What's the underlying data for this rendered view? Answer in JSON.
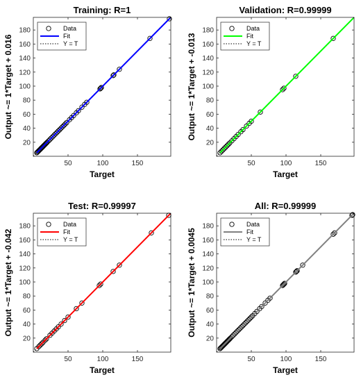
{
  "chart_data": [
    {
      "type": "scatter",
      "title": "Training: R=1",
      "xlabel": "Target",
      "ylabel": "Output ~= 1*Target + 0.016",
      "xlim": [
        0,
        198
      ],
      "ylim": [
        0,
        198
      ],
      "xticks": [
        50,
        100,
        150
      ],
      "yticks": [
        20,
        40,
        60,
        80,
        100,
        120,
        140,
        160,
        180
      ],
      "fit_color": "#0000ff",
      "fit": {
        "slope": 1,
        "intercept": 0.016
      },
      "legend": {
        "position": "top-left",
        "entries": [
          "Data",
          "Fit",
          "Y = T"
        ]
      },
      "points": [
        [
          5,
          5
        ],
        [
          6,
          6
        ],
        [
          7,
          7
        ],
        [
          8,
          8
        ],
        [
          9,
          9
        ],
        [
          10,
          10
        ],
        [
          11,
          11
        ],
        [
          12,
          12
        ],
        [
          13,
          13
        ],
        [
          14,
          14
        ],
        [
          15,
          15
        ],
        [
          16,
          16
        ],
        [
          17,
          17
        ],
        [
          18,
          18
        ],
        [
          19,
          19
        ],
        [
          20,
          20
        ],
        [
          22,
          22
        ],
        [
          24,
          24
        ],
        [
          26,
          26
        ],
        [
          28,
          28
        ],
        [
          30,
          30
        ],
        [
          32,
          32
        ],
        [
          34,
          34
        ],
        [
          36,
          36
        ],
        [
          38,
          38
        ],
        [
          40,
          40
        ],
        [
          42,
          42
        ],
        [
          44,
          44
        ],
        [
          46,
          46
        ],
        [
          48,
          48
        ],
        [
          52,
          52
        ],
        [
          55,
          55
        ],
        [
          58,
          58
        ],
        [
          62,
          62
        ],
        [
          65,
          65
        ],
        [
          70,
          70
        ],
        [
          74,
          74
        ],
        [
          77,
          77
        ],
        [
          96,
          96
        ],
        [
          97,
          97
        ],
        [
          98,
          98
        ],
        [
          115,
          115
        ],
        [
          116,
          116
        ],
        [
          124,
          124
        ],
        [
          168,
          168
        ],
        [
          196,
          196
        ]
      ]
    },
    {
      "type": "scatter",
      "title": "Validation: R=0.99999",
      "xlabel": "Target",
      "ylabel": "Output ~= 1*Target + -0.013",
      "xlim": [
        0,
        198
      ],
      "ylim": [
        0,
        198
      ],
      "xticks": [
        50,
        100,
        150
      ],
      "yticks": [
        20,
        40,
        60,
        80,
        100,
        120,
        140,
        160,
        180
      ],
      "fit_color": "#00ff00",
      "fit": {
        "slope": 1,
        "intercept": -0.013
      },
      "legend": {
        "position": "top-left",
        "entries": [
          "Data",
          "Fit",
          "Y = T"
        ]
      },
      "points": [
        [
          5,
          5
        ],
        [
          7,
          7
        ],
        [
          9,
          9
        ],
        [
          11,
          11
        ],
        [
          13,
          13
        ],
        [
          15,
          15
        ],
        [
          17,
          17
        ],
        [
          19,
          19
        ],
        [
          22,
          22
        ],
        [
          25,
          25
        ],
        [
          28,
          28
        ],
        [
          31,
          31
        ],
        [
          35,
          35
        ],
        [
          38,
          38
        ],
        [
          43,
          43
        ],
        [
          47,
          47
        ],
        [
          50,
          50
        ],
        [
          63,
          63
        ],
        [
          95,
          95
        ],
        [
          97,
          97
        ],
        [
          114,
          114
        ],
        [
          168,
          168
        ]
      ]
    },
    {
      "type": "scatter",
      "title": "Test: R=0.99997",
      "xlabel": "Target",
      "ylabel": "Output ~= 1*Target + -0.042",
      "xlim": [
        0,
        198
      ],
      "ylim": [
        0,
        198
      ],
      "xticks": [
        50,
        100,
        150
      ],
      "yticks": [
        20,
        40,
        60,
        80,
        100,
        120,
        140,
        160,
        180
      ],
      "fit_color": "#ff0000",
      "fit": {
        "slope": 1,
        "intercept": -0.042
      },
      "legend": {
        "position": "top-left",
        "entries": [
          "Data",
          "Fit",
          "Y = T"
        ]
      },
      "points": [
        [
          5,
          5
        ],
        [
          8,
          8
        ],
        [
          10,
          10
        ],
        [
          12,
          12
        ],
        [
          14,
          14
        ],
        [
          17,
          17
        ],
        [
          19,
          19
        ],
        [
          24,
          24
        ],
        [
          27,
          27
        ],
        [
          30,
          30
        ],
        [
          33,
          33
        ],
        [
          36,
          36
        ],
        [
          40,
          40
        ],
        [
          45,
          45
        ],
        [
          50,
          50
        ],
        [
          62,
          62
        ],
        [
          70,
          70
        ],
        [
          95,
          95
        ],
        [
          97,
          97
        ],
        [
          115,
          115
        ],
        [
          124,
          124
        ],
        [
          170,
          170
        ],
        [
          195,
          195
        ]
      ]
    },
    {
      "type": "scatter",
      "title": "All: R=0.99999",
      "xlabel": "Target",
      "ylabel": "Output ~= 1*Target + 0.0045",
      "xlim": [
        0,
        198
      ],
      "ylim": [
        0,
        198
      ],
      "xticks": [
        50,
        100,
        150
      ],
      "yticks": [
        20,
        40,
        60,
        80,
        100,
        120,
        140,
        160,
        180
      ],
      "fit_color": "#808080",
      "fit": {
        "slope": 1,
        "intercept": 0.0045
      },
      "legend": {
        "position": "top-left",
        "entries": [
          "Data",
          "Fit",
          "Y = T"
        ]
      },
      "points": [
        [
          5,
          5
        ],
        [
          6,
          6
        ],
        [
          7,
          7
        ],
        [
          8,
          8
        ],
        [
          9,
          9
        ],
        [
          10,
          10
        ],
        [
          11,
          11
        ],
        [
          12,
          12
        ],
        [
          13,
          13
        ],
        [
          14,
          14
        ],
        [
          15,
          15
        ],
        [
          16,
          16
        ],
        [
          17,
          17
        ],
        [
          18,
          18
        ],
        [
          19,
          19
        ],
        [
          20,
          20
        ],
        [
          22,
          22
        ],
        [
          24,
          24
        ],
        [
          26,
          26
        ],
        [
          28,
          28
        ],
        [
          30,
          30
        ],
        [
          32,
          32
        ],
        [
          34,
          34
        ],
        [
          36,
          36
        ],
        [
          38,
          38
        ],
        [
          40,
          40
        ],
        [
          42,
          42
        ],
        [
          44,
          44
        ],
        [
          46,
          46
        ],
        [
          48,
          48
        ],
        [
          50,
          50
        ],
        [
          52,
          52
        ],
        [
          55,
          55
        ],
        [
          58,
          58
        ],
        [
          62,
          62
        ],
        [
          65,
          65
        ],
        [
          70,
          70
        ],
        [
          74,
          74
        ],
        [
          77,
          77
        ],
        [
          95,
          95
        ],
        [
          96,
          96
        ],
        [
          97,
          97
        ],
        [
          98,
          98
        ],
        [
          114,
          114
        ],
        [
          115,
          115
        ],
        [
          116,
          116
        ],
        [
          124,
          124
        ],
        [
          168,
          168
        ],
        [
          170,
          170
        ],
        [
          195,
          195
        ],
        [
          196,
          196
        ]
      ]
    }
  ]
}
